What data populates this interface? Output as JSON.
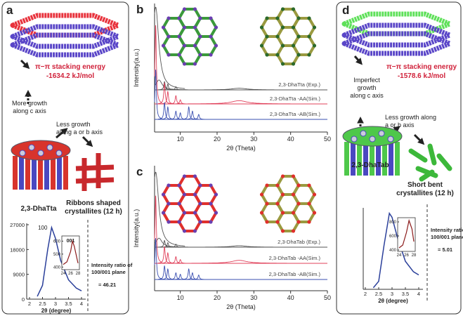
{
  "panel_a": {
    "label": "a",
    "energy_title": "π−π stacking energy",
    "energy_value": "-1634.2 kJ/mol",
    "growth_c": [
      "More growth",
      "along c axis"
    ],
    "growth_ab": [
      "Less growth",
      "along a or b axis"
    ],
    "material": "2,3-DhaTta",
    "crystallites": [
      "Ribbons shaped",
      "crystallites (12 h)"
    ],
    "inset": {
      "peak_label": "100",
      "xlabel": "2θ (degree)",
      "xlim": [
        2,
        4
      ],
      "xticks": [
        2,
        2.5,
        3,
        3.5,
        4
      ],
      "ylim": [
        0,
        27000
      ],
      "yticks": [
        0,
        9000,
        18000,
        27000
      ],
      "x": [
        2.3,
        2.5,
        2.7,
        2.85,
        3.0,
        3.2,
        3.5,
        3.8,
        4.0
      ],
      "values": [
        1000,
        5000,
        18000,
        26000,
        22000,
        14000,
        7000,
        4000,
        3000
      ],
      "color": "#2a3f9a",
      "inner": {
        "label": "001",
        "xlim": [
          24,
          28
        ],
        "xticks": [
          24,
          26,
          28
        ],
        "ylim": [
          380,
          640
        ],
        "yticks": [
          400,
          500,
          600
        ],
        "x": [
          24,
          25,
          26,
          26.5,
          27,
          28
        ],
        "values": [
          420,
          440,
          520,
          600,
          560,
          430
        ],
        "color": "#8b1a1a"
      },
      "ratio_label": [
        "Intensity ratio of",
        "100/001 plane"
      ],
      "ratio": "= 46.21"
    }
  },
  "panel_b": {
    "label": "b",
    "ylabel": "Intensity(a.u.)",
    "xlabel": "2θ (Theta)",
    "xlim": [
      3,
      50
    ],
    "xticks": [
      10,
      20,
      30,
      40,
      50
    ],
    "series": [
      {
        "name": "2,3-DhaTta (Exp.)",
        "color": "#555555",
        "peaks_x": [
          3.3,
          4.2,
          5.7,
          6.6,
          8.8,
          26
        ],
        "peaks_h": [
          100,
          12,
          10,
          7,
          4,
          2
        ]
      },
      {
        "name": "2,3-DhaTta -AA(Sim.)",
        "color": "#e0405a",
        "peaks_x": [
          3.3,
          5.7,
          6.6,
          8.8,
          10,
          26
        ],
        "peaks_h": [
          95,
          25,
          15,
          10,
          5,
          4
        ]
      },
      {
        "name": "2,3-DhaTta -AB(Sim.)",
        "color": "#3a4fb0",
        "peaks_x": [
          3.3,
          5.7,
          6.6,
          8.8,
          10,
          12.3,
          13.3,
          15
        ],
        "peaks_h": [
          60,
          20,
          15,
          10,
          8,
          15,
          10,
          6
        ]
      }
    ]
  },
  "panel_c": {
    "label": "c",
    "ylabel": "Intensity(a.u.)",
    "xlabel": "2θ (Theta)",
    "xlim": [
      3,
      50
    ],
    "xticks": [
      10,
      20,
      30,
      40,
      50
    ],
    "series": [
      {
        "name": "2,3-DhaTab (Exp.)",
        "color": "#555555",
        "peaks_x": [
          3.3,
          4.2,
          5.7,
          6.6,
          8.8,
          26
        ],
        "peaks_h": [
          100,
          12,
          9,
          6,
          4,
          2
        ]
      },
      {
        "name": "2,3-DhaTab -AA(Sim.)",
        "color": "#e0405a",
        "peaks_x": [
          3.3,
          5.7,
          6.6,
          8.8,
          10,
          26
        ],
        "peaks_h": [
          90,
          22,
          14,
          9,
          5,
          4
        ]
      },
      {
        "name": "2,3-DhaTab -AB(Sim.)",
        "color": "#3a4fb0",
        "peaks_x": [
          3.3,
          5.7,
          6.6,
          8.8,
          10,
          12.3,
          13.3,
          15
        ],
        "peaks_h": [
          55,
          18,
          14,
          9,
          7,
          14,
          9,
          6
        ]
      }
    ]
  },
  "panel_d": {
    "label": "d",
    "energy_title": "π−π stacking energy",
    "energy_value": "-1578.6 kJ/mol",
    "growth_c": [
      "Imperfect",
      "growth",
      "along c axis"
    ],
    "growth_ab": [
      "Less growth along",
      "a or b axis"
    ],
    "material": "2,3-DhaTab",
    "crystallites": [
      "Short bent",
      "crystallites (12 h)"
    ],
    "inset": {
      "xlabel": "2θ (degree)",
      "xlim": [
        2,
        4
      ],
      "xticks": [
        2,
        2.5,
        3,
        3.5,
        4
      ],
      "ylim": [
        0,
        100
      ],
      "x": [
        2.3,
        2.5,
        2.7,
        2.9,
        3.0,
        3.2,
        3.5,
        3.8,
        4.0
      ],
      "values": [
        2,
        10,
        55,
        95,
        90,
        65,
        35,
        22,
        18
      ],
      "color": "#2a3f9a",
      "inner": {
        "xlim": [
          24,
          28
        ],
        "xticks": [
          24,
          26,
          28
        ],
        "ylim": [
          380,
          860
        ],
        "yticks": [
          400,
          600,
          800
        ],
        "x": [
          24,
          25,
          26,
          26.7,
          27.5,
          28
        ],
        "values": [
          430,
          470,
          650,
          820,
          700,
          520
        ],
        "color": "#8b1a1a"
      },
      "ratio_label": [
        "Intensity ratio of",
        "100/001 plane"
      ],
      "ratio": "= 5.01"
    }
  }
}
